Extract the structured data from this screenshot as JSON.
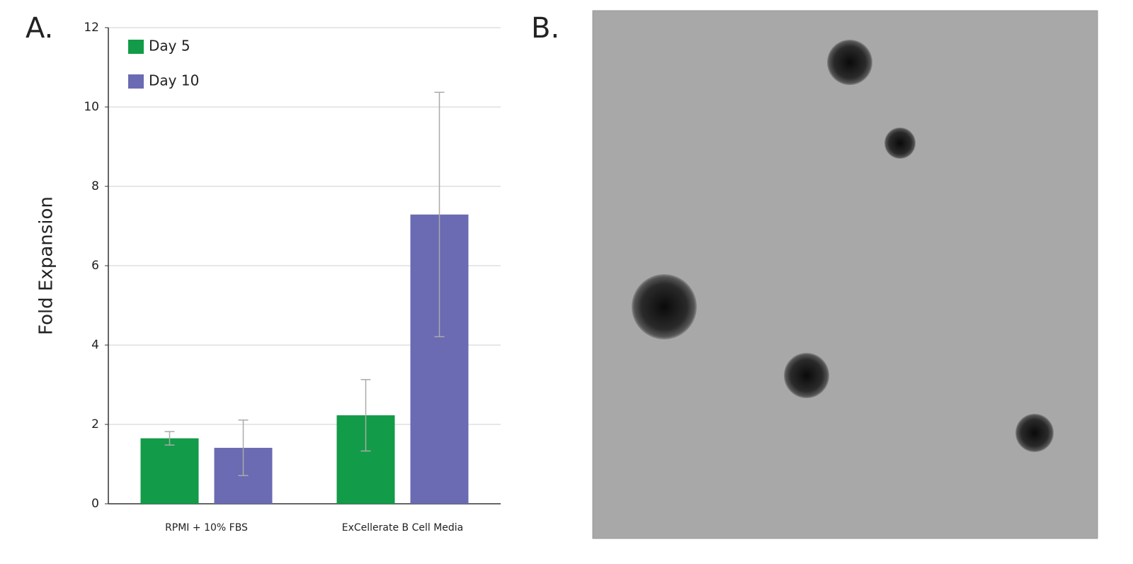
{
  "panel_a_label": "A.",
  "panel_b_label": "B.",
  "chart_data": {
    "type": "bar",
    "y_label": "Fold Expansion",
    "categories": [
      "RPMI + 10% FBS",
      "ExCellerate B Cell Media"
    ],
    "series": [
      {
        "name": "Day 5",
        "color": "#129b48",
        "values": [
          1.65,
          2.23
        ],
        "errors": [
          0.17,
          0.9
        ]
      },
      {
        "name": "Day 10",
        "color": "#6b6bb3",
        "values": [
          1.41,
          7.29
        ],
        "errors": [
          0.7,
          3.08
        ]
      }
    ],
    "ylim": [
      0,
      12
    ],
    "yticks": [
      0,
      2,
      4,
      6,
      8,
      10,
      12
    ],
    "grid": true,
    "legend": "top-left"
  }
}
